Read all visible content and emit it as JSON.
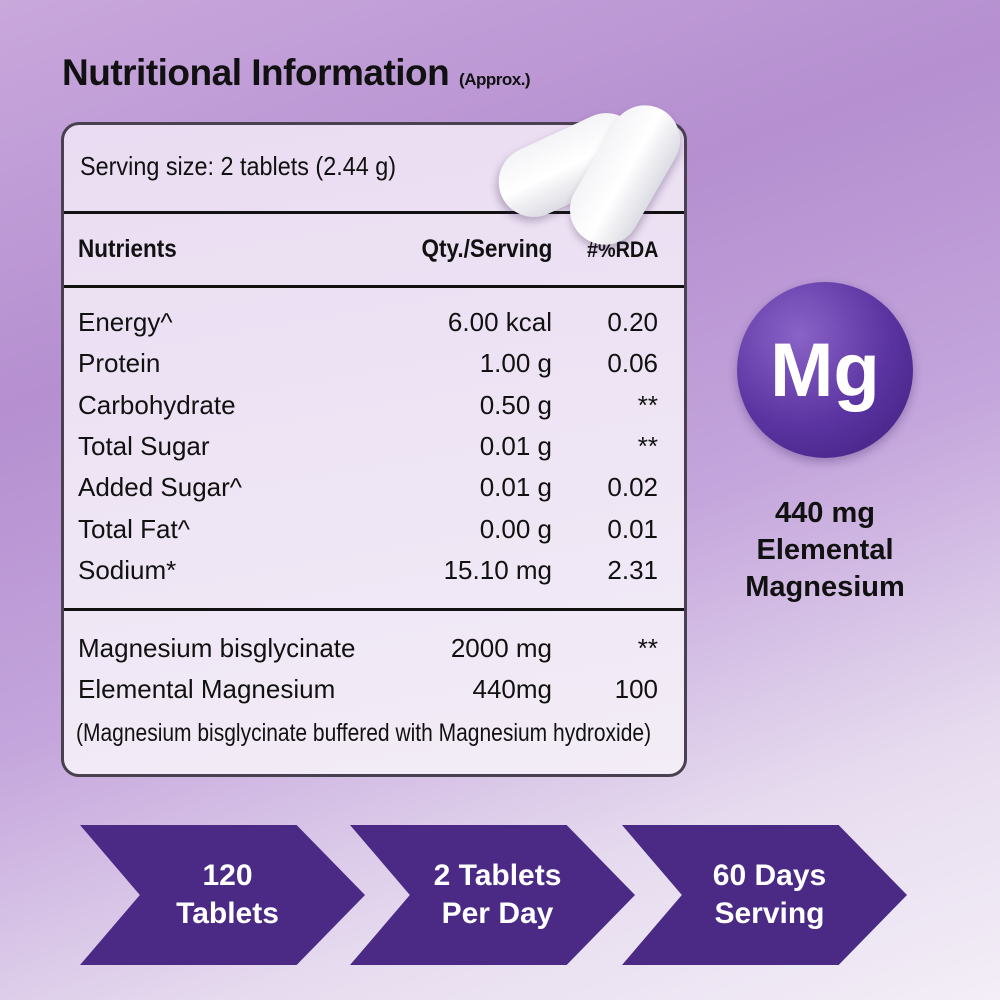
{
  "title": "Nutritional Information",
  "title_note": "(Approx.)",
  "serving": "Serving size: 2 tablets (2.44 g)",
  "headers": {
    "nutrient": "Nutrients",
    "qty": "Qty./Serving",
    "rda": "#%RDA"
  },
  "rows": [
    {
      "n": "Energy^",
      "q": "6.00 kcal",
      "d": "0.20"
    },
    {
      "n": "Protein",
      "q": "1.00 g",
      "d": "0.06"
    },
    {
      "n": "Carbohydrate",
      "q": "0.50 g",
      "d": "**"
    },
    {
      "n": "Total Sugar",
      "q": "0.01 g",
      "d": "**"
    },
    {
      "n": "Added Sugar^",
      "q": "0.01 g",
      "d": "0.02"
    },
    {
      "n": "Total Fat^",
      "q": "0.00 g",
      "d": "0.01"
    },
    {
      "n": "Sodium*",
      "q": "15.10 mg",
      "d": "2.31"
    }
  ],
  "minerals": [
    {
      "n": "Magnesium bisglycinate",
      "q": "2000 mg",
      "d": "**"
    },
    {
      "n": "Elemental Magnesium",
      "q": "440mg",
      "d": "100"
    }
  ],
  "footnote": "(Magnesium bisglycinate buffered with Magnesium hydroxide)",
  "badge": {
    "symbol": "Mg",
    "line1": "440 mg",
    "line2": "Elemental",
    "line3": "Magnesium"
  },
  "arrows": [
    {
      "a": "120",
      "b": "Tablets"
    },
    {
      "a": "2 Tablets",
      "b": "Per Day"
    },
    {
      "a": "60 Days",
      "b": "Serving"
    }
  ],
  "colors": {
    "accent": "#4a2a85"
  }
}
